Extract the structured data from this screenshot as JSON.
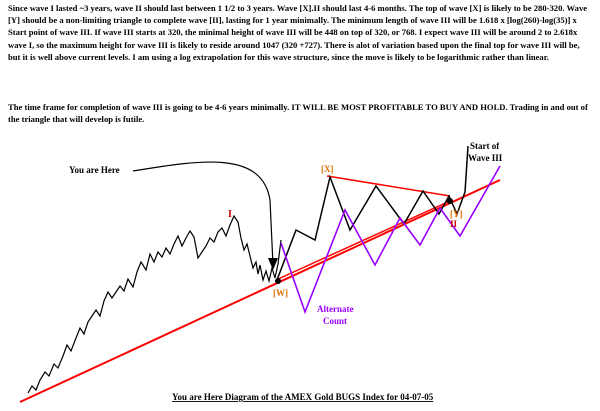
{
  "text": {
    "paragraph1": "Since wave I lasted ~3 years, wave II should last between 1 1/2 to 3 years. Wave [X].II should last 4-6 months. The top of wave [X] is likely to be 280-320. Wave [Y] should be a non-limiting triangle to complete wave [II], lasting for 1 year minimally. The minimum length of wave III will be 1.618 x [log(260)-log(35)] x Start point of wave III. If wave III starts at 320, the minimal height of wave III will be 448 on top of 320, or 768. I expect wave III will be around 2 to 2.618x wave I, so the maximum height for wave III is likely to reside around 1047 (320 +727). There is alot of variation based upon the final top for wave III will be, but it is well above current levels. I am using a log extrapolation for this wave structure, since the move is likely to be logarithmic rather than linear.",
    "paragraph2": "The time frame for completion of wave III is going to be 4-6 years minimally. IT WILL BE MOST PROFITABLE TO BUY AND HOLD. Trading in and out of the triangle that will develop is futile."
  },
  "labels": {
    "you_are_here": "You are Here",
    "wave_i": "I",
    "wave_w": "[W]",
    "wave_x": "[X]",
    "wave_y": "[Y]",
    "wave_ii": "II",
    "start_of": "Start of",
    "wave_iii": "Wave III",
    "alternate": "Alternate",
    "count": "Count",
    "caption": "You are Here Diagram of the AMEX Gold BUGS Index for 04-07-05"
  },
  "colors": {
    "price_line": "#000000",
    "trend_line": "#ff0000",
    "alternate_count": "#9900ff",
    "wave_label_red": "#cc0000",
    "wave_label_orange": "#e07000",
    "caption_text": "#000000"
  }
}
